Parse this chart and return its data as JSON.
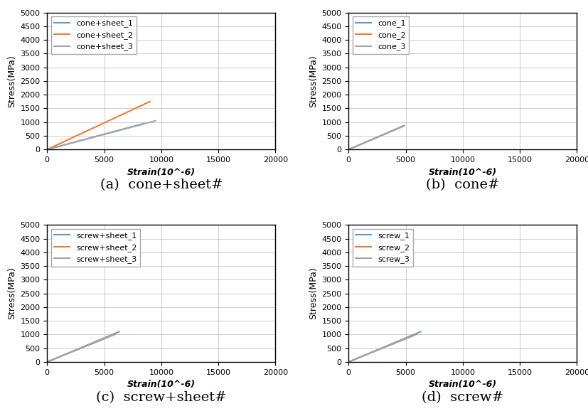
{
  "subplots": [
    {
      "caption": "(a)  cone+sheet#",
      "legend_labels": [
        "cone+sheet_1",
        "cone+sheet_2",
        "cone+sheet_3"
      ],
      "colors": [
        "#5b9bd5",
        "#ed7d31",
        "#a5a5a5"
      ],
      "lines": [
        [
          [
            0,
            8500
          ],
          [
            0,
            950
          ]
        ],
        [
          [
            0,
            9000
          ],
          [
            0,
            1750
          ]
        ],
        [
          [
            0,
            9500
          ],
          [
            0,
            1050
          ]
        ]
      ]
    },
    {
      "caption": "(b)  cone#",
      "legend_labels": [
        "cone_1",
        "cone_2",
        "cone_3"
      ],
      "colors": [
        "#5b9bd5",
        "#ed7d31",
        "#a5a5a5"
      ],
      "lines": [
        [
          [
            0,
            4800
          ],
          [
            0,
            850
          ]
        ],
        [
          [
            0,
            4700
          ],
          [
            0,
            840
          ]
        ],
        [
          [
            0,
            4900
          ],
          [
            0,
            880
          ]
        ]
      ]
    },
    {
      "caption": "(c)  screw+sheet#",
      "legend_labels": [
        "screw+sheet_1",
        "screw+sheet_2",
        "screw+sheet_3"
      ],
      "colors": [
        "#5b9bd5",
        "#ed7d31",
        "#a5a5a5"
      ],
      "lines": [
        [
          [
            0,
            6300
          ],
          [
            0,
            1100
          ]
        ],
        [
          [
            0,
            6000
          ],
          [
            0,
            1020
          ]
        ],
        [
          [
            0,
            5800
          ],
          [
            0,
            980
          ]
        ]
      ]
    },
    {
      "caption": "(d)  screw#",
      "legend_labels": [
        "screw_1",
        "screw_2",
        "screw_3"
      ],
      "colors": [
        "#5b9bd5",
        "#ed7d31",
        "#a5a5a5"
      ],
      "lines": [
        [
          [
            0,
            6300
          ],
          [
            0,
            1100
          ]
        ],
        [
          [
            0,
            6000
          ],
          [
            0,
            1020
          ]
        ],
        [
          [
            0,
            5800
          ],
          [
            0,
            980
          ]
        ]
      ]
    }
  ],
  "xlim": [
    0,
    20000
  ],
  "ylim": [
    0,
    5000
  ],
  "xticks": [
    0,
    5000,
    10000,
    15000,
    20000
  ],
  "yticks": [
    0,
    500,
    1000,
    1500,
    2000,
    2500,
    3000,
    3500,
    4000,
    4500,
    5000
  ],
  "xlabel": "Strain(10^-6)",
  "ylabel": "Stress(MPa)",
  "grid_color": "#bbbbbb",
  "line_width": 1.5,
  "caption_fontsize": 14,
  "label_fontsize": 9,
  "tick_fontsize": 8,
  "legend_fontsize": 8,
  "background_color": "#ffffff"
}
